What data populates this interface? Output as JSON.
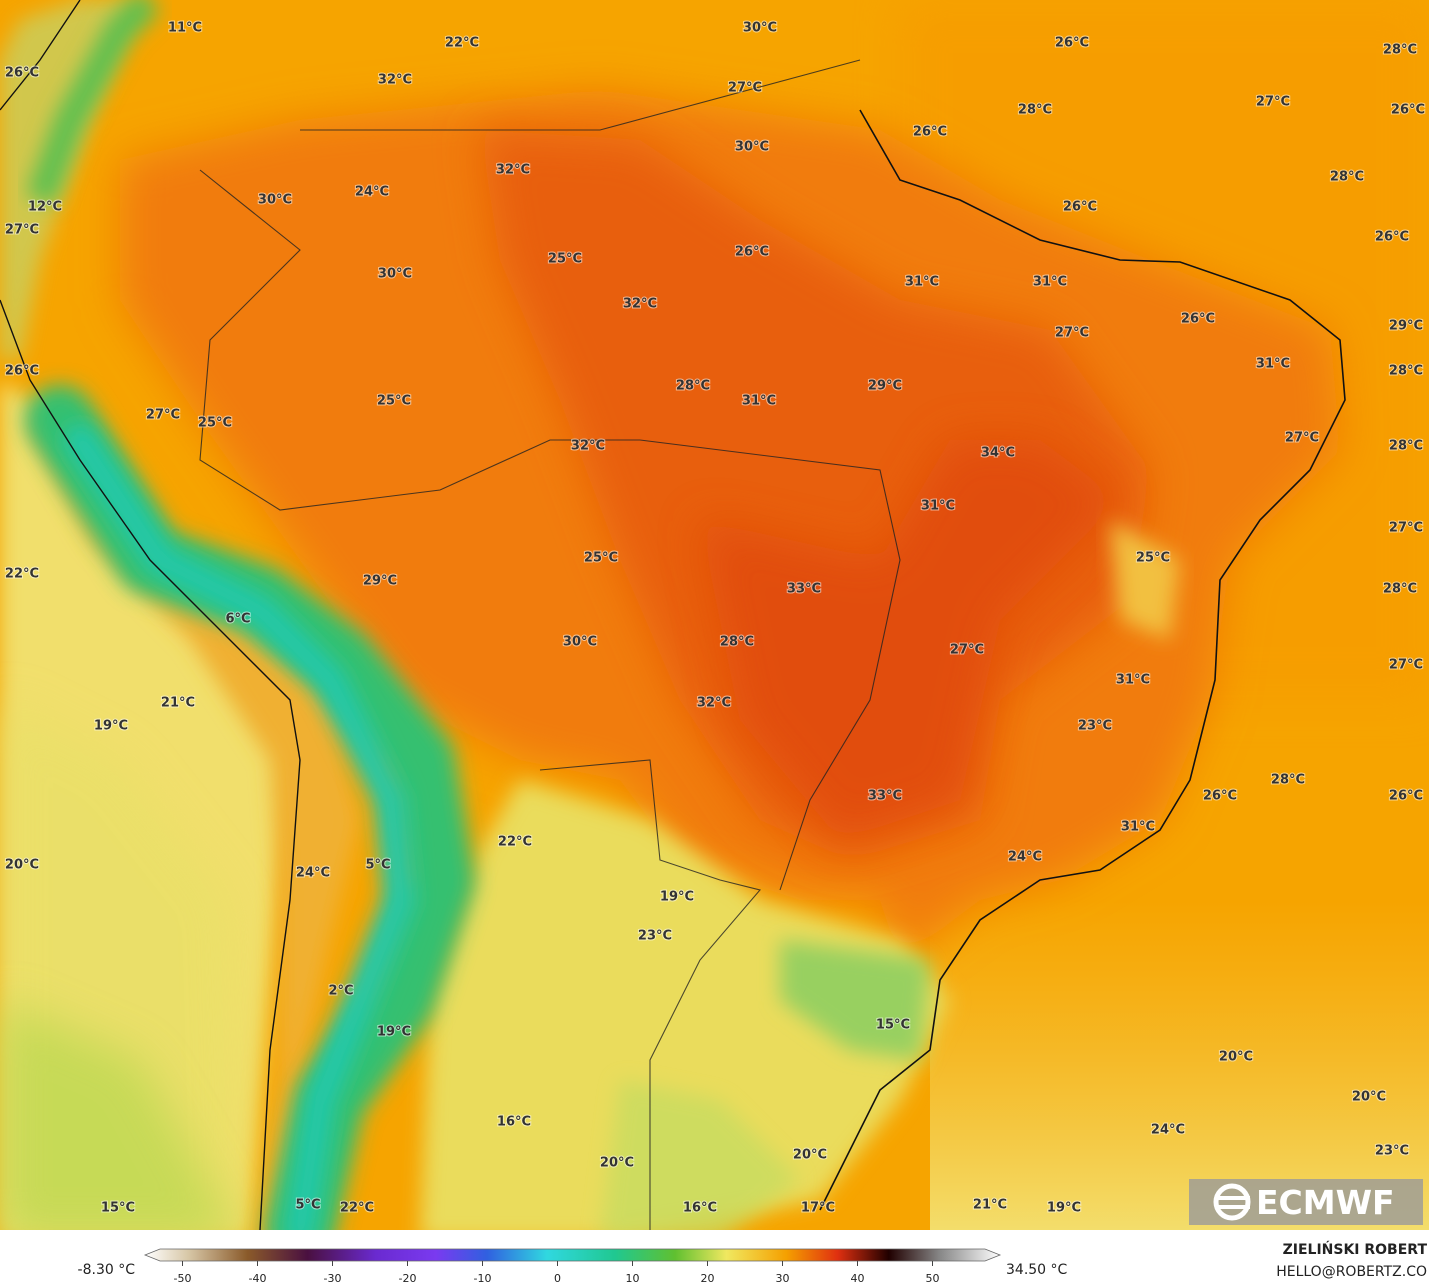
{
  "map": {
    "labels": [
      "11°C",
      "22°C",
      "30°C",
      "26°C",
      "28°C",
      "26°C",
      "32°C",
      "27°C",
      "28°C",
      "27°C",
      "26°C",
      "26°C",
      "30°C",
      "32°C",
      "28°C",
      "24°C",
      "30°C",
      "26°C",
      "12°C",
      "27°C",
      "26°C",
      "26°C",
      "25°C",
      "30°C",
      "31°C",
      "31°C",
      "32°C",
      "26°C",
      "27°C",
      "29°C",
      "31°C",
      "26°C",
      "28°C",
      "28°C",
      "29°C",
      "31°C",
      "25°C",
      "27°C",
      "25°C",
      "27°C",
      "32°C",
      "28°C",
      "34°C",
      "31°C",
      "27°C",
      "25°C",
      "25°C",
      "22°C",
      "29°C",
      "33°C",
      "28°C",
      "6°C",
      "30°C",
      "28°C",
      "27°C",
      "27°C",
      "31°C",
      "21°C",
      "32°C",
      "19°C",
      "23°C",
      "28°C",
      "33°C",
      "26°C",
      "26°C",
      "31°C",
      "22°C",
      "20°C",
      "5°C",
      "24°C",
      "24°C",
      "19°C",
      "23°C",
      "15°C",
      "19°C",
      "2°C",
      "20°C",
      "20°C",
      "16°C",
      "24°C",
      "20°C",
      "20°C",
      "23°C",
      "15°C",
      "5°C",
      "22°C",
      "16°C",
      "17°C",
      "21°C",
      "19°C"
    ]
  },
  "colorbar": {
    "min_label": "-8.30 °C",
    "max_label": "34.50 °C",
    "lim": [
      -55,
      59
    ],
    "ticks": [
      -50,
      -40,
      -30,
      -20,
      -10,
      0,
      10,
      20,
      30,
      40,
      50
    ]
  },
  "credit": {
    "author": "ZIELIŃSKI ROBERT",
    "email": "HELLO@ROBERTZ.CO"
  },
  "logo": "ECMWF"
}
